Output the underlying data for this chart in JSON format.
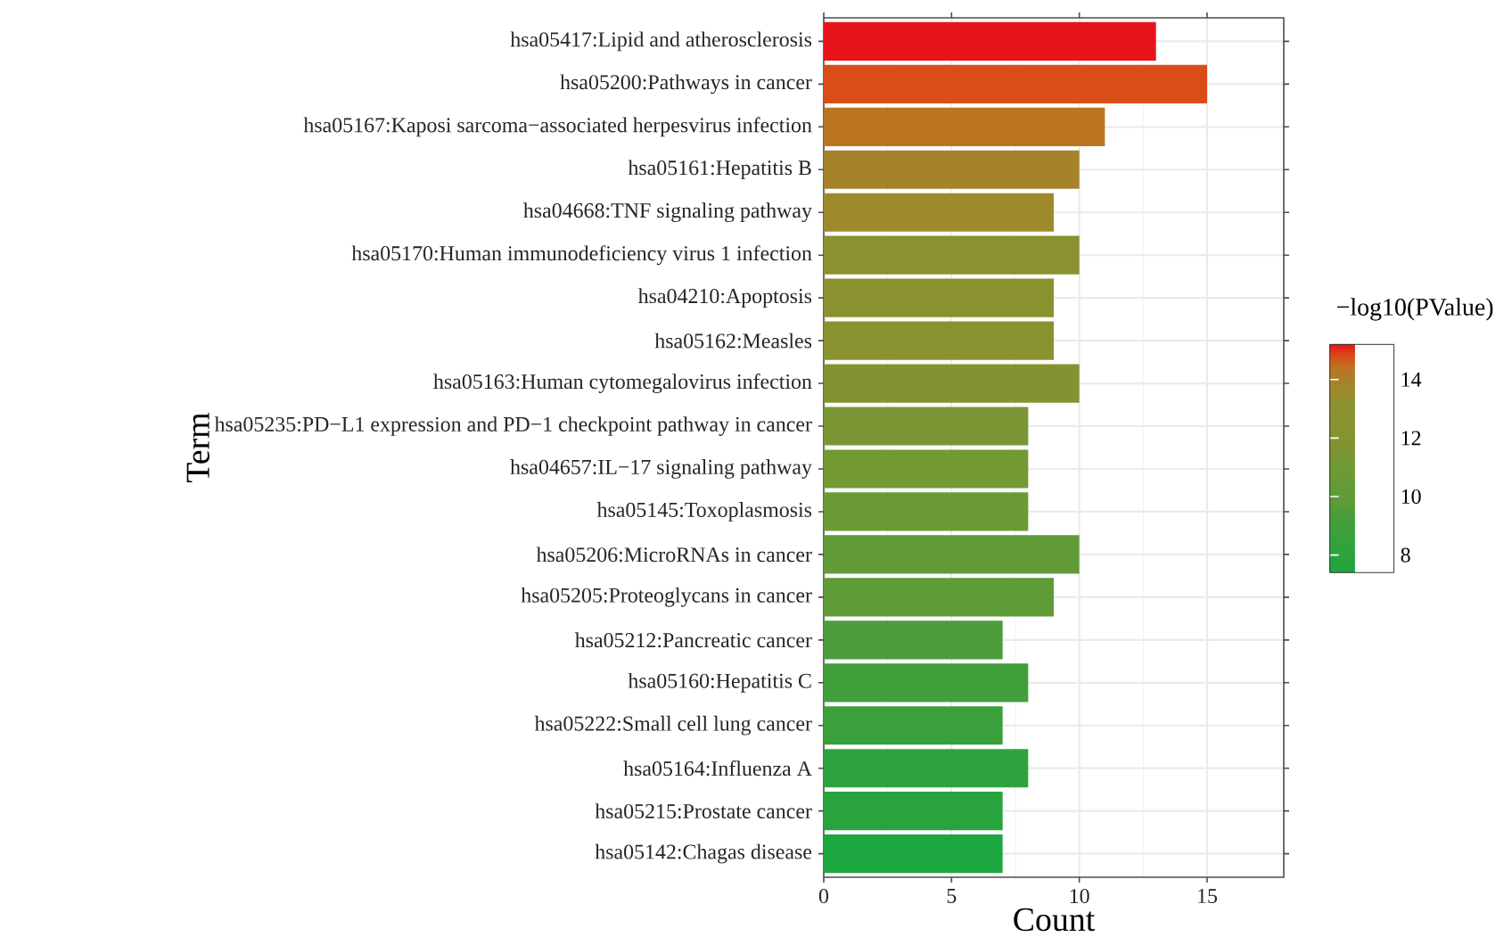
{
  "chart_data": {
    "type": "bar",
    "orientation": "horizontal",
    "xlabel": "Count",
    "ylabel": "Term",
    "clabel": "−log10(PValue)",
    "categories": [
      "hsa05417:Lipid and atherosclerosis",
      "hsa05200:Pathways in cancer",
      "hsa05167:Kaposi sarcoma−associated herpesvirus infection",
      "hsa05161:Hepatitis B",
      "hsa04668:TNF signaling pathway",
      "hsa05170:Human immunodeficiency virus 1 infection",
      "hsa04210:Apoptosis",
      "hsa05162:Measles",
      "hsa05163:Human cytomegalovirus infection",
      "hsa05235:PD−L1 expression and PD−1 checkpoint pathway in cancer",
      "hsa04657:IL−17 signaling pathway",
      "hsa05145:Toxoplasmosis",
      "hsa05206:MicroRNAs in cancer",
      "hsa05205:Proteoglycans in cancer",
      "hsa05212:Pancreatic cancer",
      "hsa05160:Hepatitis C",
      "hsa05222:Small cell lung cancer",
      "hsa05164:Influenza A",
      "hsa05215:Prostate cancer",
      "hsa05142:Chagas disease"
    ],
    "values": [
      13,
      15,
      11,
      10,
      9,
      10,
      9,
      9,
      10,
      8,
      8,
      8,
      10,
      9,
      7,
      8,
      7,
      8,
      7,
      7
    ],
    "colors": [
      "#e8141c",
      "#d94e16",
      "#bb7520",
      "#a6822a",
      "#9e8a2a",
      "#8a922f",
      "#8a922f",
      "#889330",
      "#849331",
      "#7a9533",
      "#739a33",
      "#6c9a35",
      "#619b36",
      "#5f9b37",
      "#4c9d3a",
      "#419f3b",
      "#3aa03c",
      "#30a23d",
      "#29a33e",
      "#1ca740"
    ],
    "xlim": [
      0,
      18
    ],
    "xticks": [
      0,
      5,
      10,
      15
    ],
    "clim": [
      7.4,
      15.2
    ],
    "cticks": [
      8,
      10,
      12,
      14
    ],
    "grid": true
  }
}
